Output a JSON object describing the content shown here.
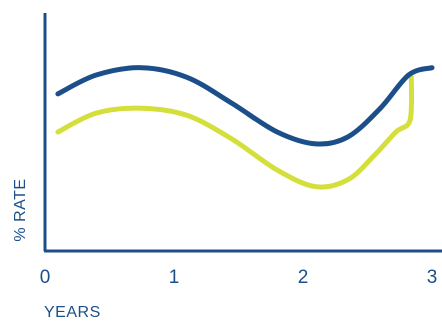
{
  "chart_data": {
    "type": "line",
    "title": "",
    "xlabel": "YEARS",
    "ylabel": "% RATE",
    "xlim": [
      0,
      3
    ],
    "ylim": [
      0,
      1
    ],
    "x_ticks": [
      "0",
      "1",
      "2",
      "3"
    ],
    "grid": false,
    "legend": "none",
    "series": [
      {
        "color": "#1c4f8a",
        "points": [
          [
            0.1,
            0.66
          ],
          [
            0.4,
            0.74
          ],
          [
            0.75,
            0.77
          ],
          [
            1.1,
            0.73
          ],
          [
            1.45,
            0.62
          ],
          [
            1.8,
            0.5
          ],
          [
            2.1,
            0.45
          ],
          [
            2.35,
            0.48
          ],
          [
            2.6,
            0.6
          ],
          [
            2.82,
            0.74
          ],
          [
            3.0,
            0.77
          ]
        ]
      },
      {
        "color": "#d4df3c",
        "points": [
          [
            0.1,
            0.5
          ],
          [
            0.4,
            0.58
          ],
          [
            0.75,
            0.6
          ],
          [
            1.1,
            0.57
          ],
          [
            1.45,
            0.47
          ],
          [
            1.8,
            0.34
          ],
          [
            2.1,
            0.27
          ],
          [
            2.35,
            0.3
          ],
          [
            2.55,
            0.4
          ],
          [
            2.72,
            0.5
          ],
          [
            2.83,
            0.55
          ],
          [
            2.84,
            0.73
          ]
        ]
      }
    ]
  }
}
